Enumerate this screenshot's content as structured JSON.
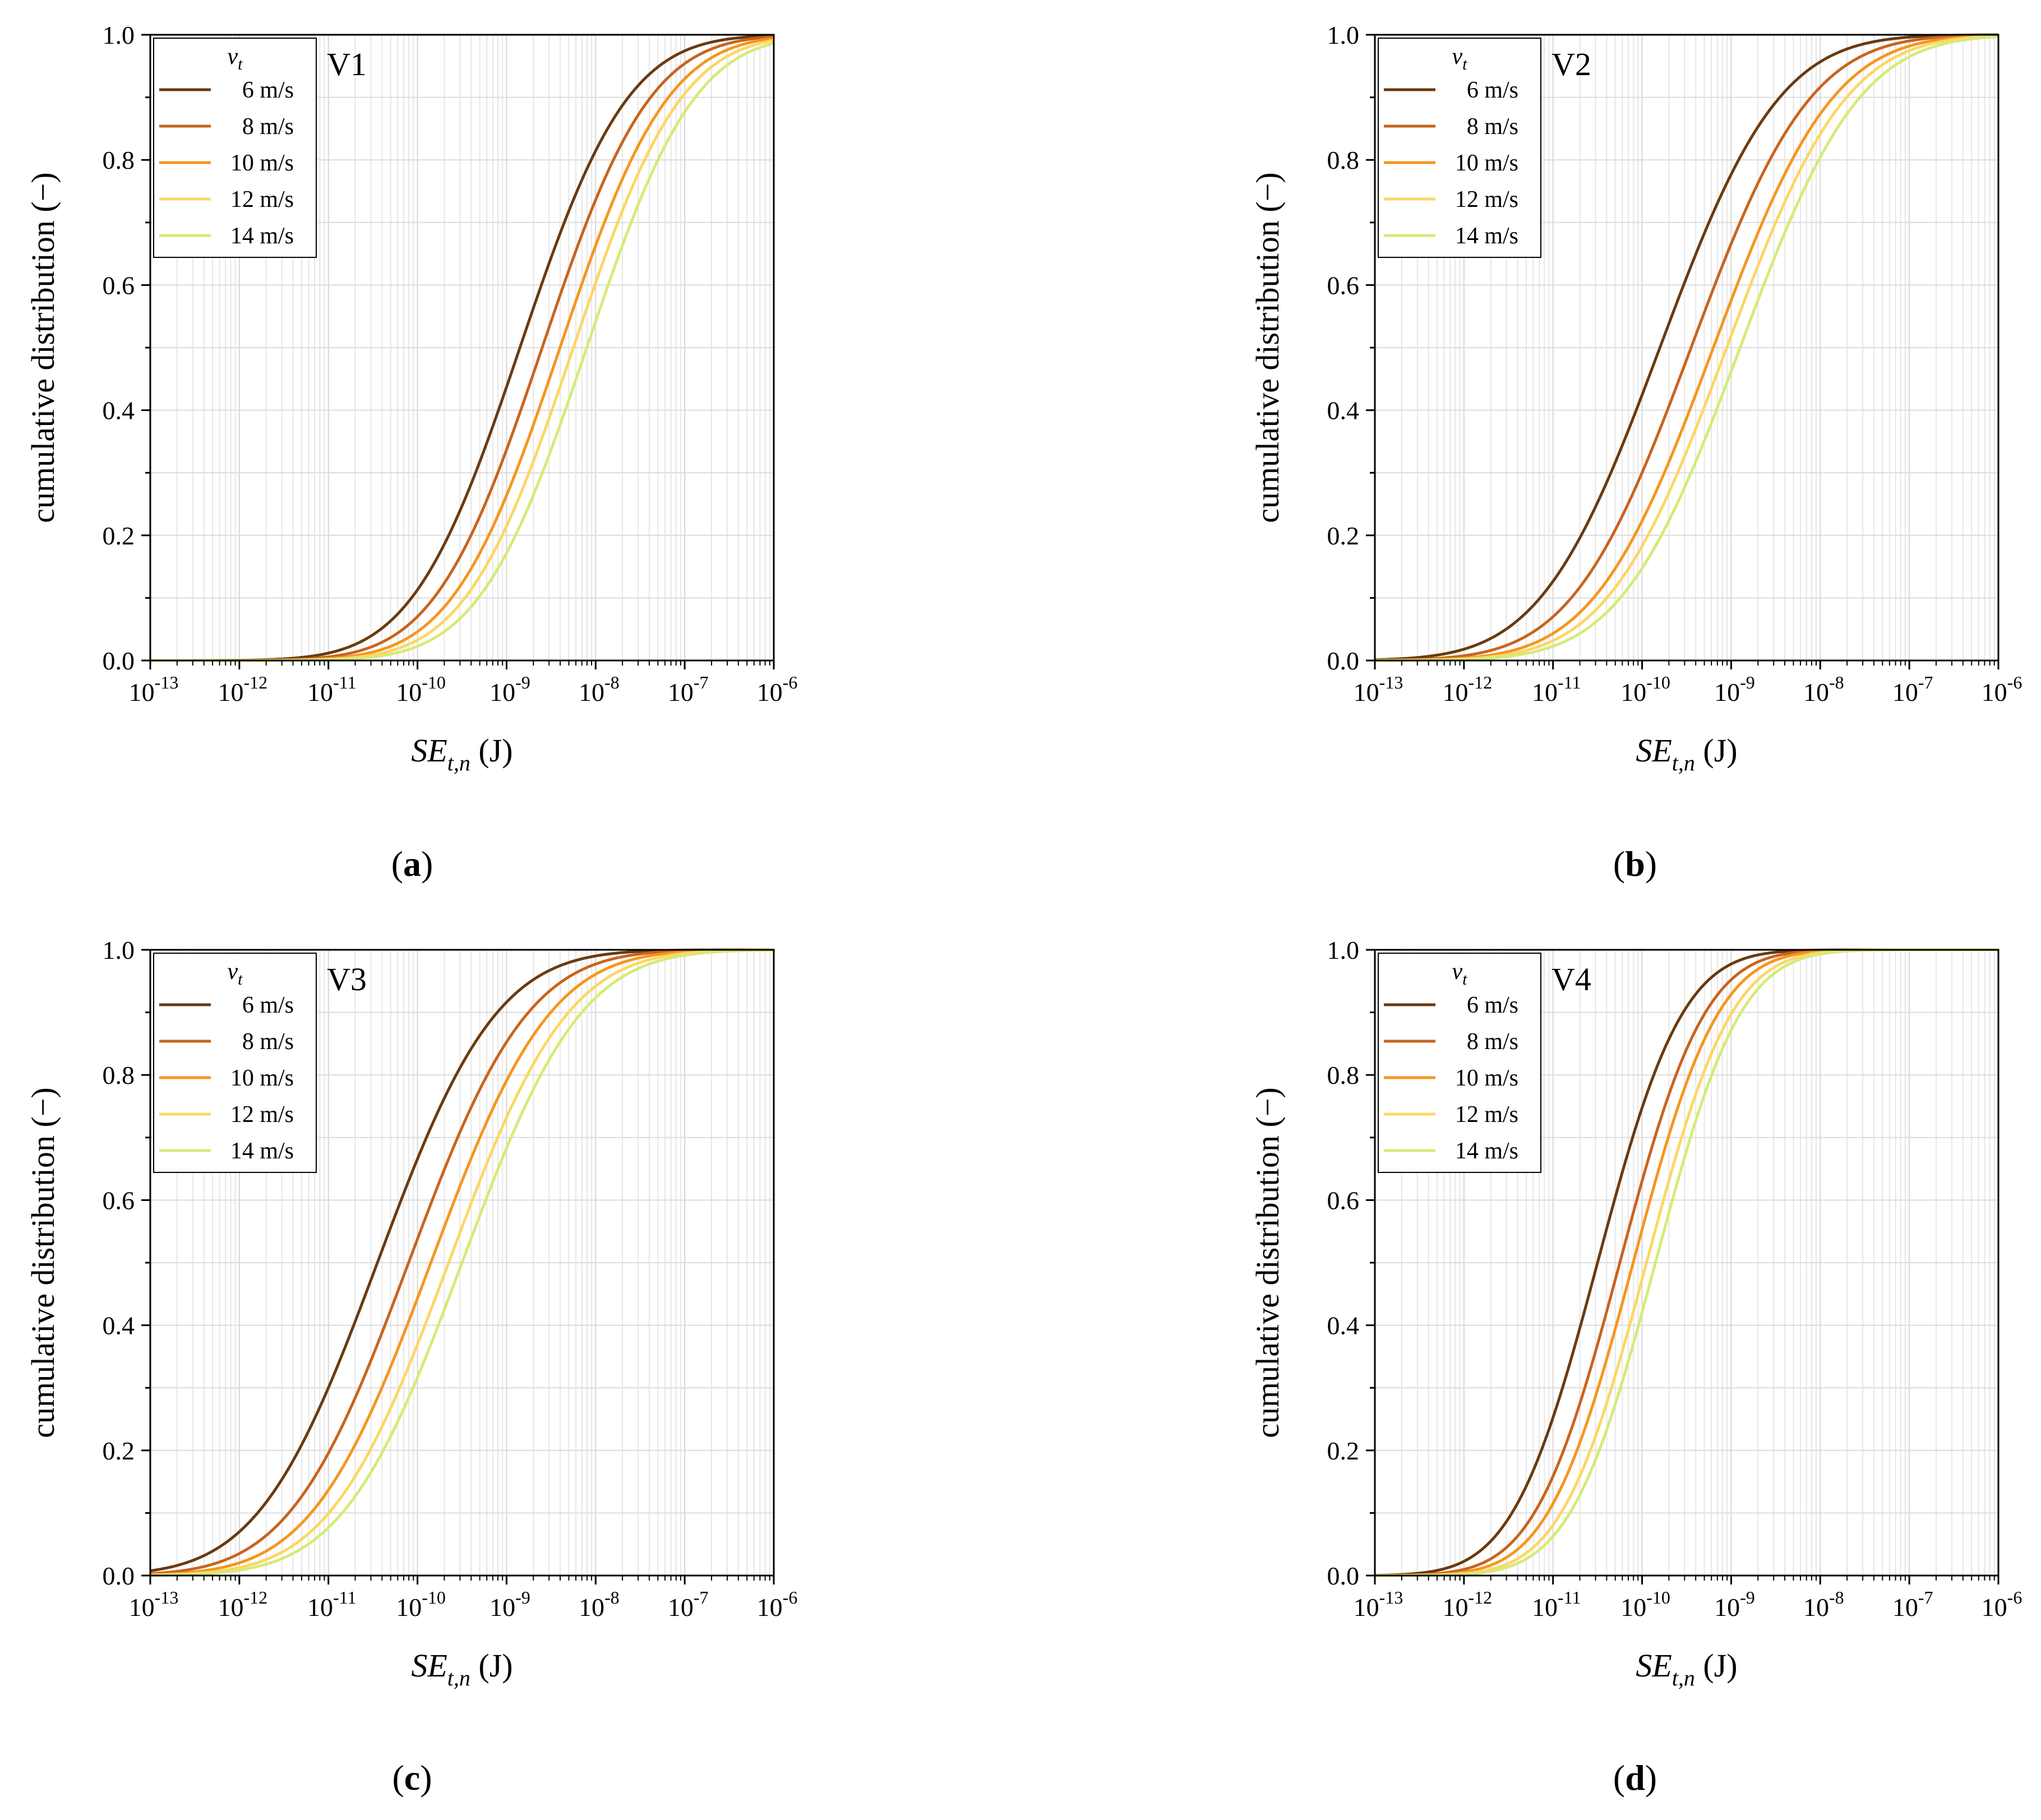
{
  "chart_data": [
    {
      "type": "line",
      "panel_label": "a",
      "title": "V1",
      "xlabel_main": "SE",
      "xlabel_sub": "t,n",
      "xlabel_unit": " (J)",
      "ylabel": "cumulative distribution (−)",
      "xscale": "log",
      "xlim": [
        1e-13,
        1e-06
      ],
      "ylim": [
        0,
        1
      ],
      "x_ticks": [
        "-13",
        "-12",
        "-11",
        "-10",
        "-9",
        "-8",
        "-7",
        "-6"
      ],
      "y_ticks": [
        "0.0",
        "0.2",
        "0.4",
        "0.6",
        "0.8",
        "1.0"
      ],
      "legend_title": "v",
      "legend_title_sub": "t",
      "legend_position": "top-left",
      "series": [
        {
          "name": "6 m/s",
          "color": "#6b3a10",
          "median_exp": -8.85,
          "sigma": 0.95
        },
        {
          "name": "8 m/s",
          "color": "#c8641e",
          "median_exp": -8.6,
          "sigma": 0.95
        },
        {
          "name": "10 m/s",
          "color": "#f5961e",
          "median_exp": -8.4,
          "sigma": 0.95
        },
        {
          "name": "12 m/s",
          "color": "#fcd764",
          "median_exp": -8.25,
          "sigma": 0.95
        },
        {
          "name": "14 m/s",
          "color": "#d7ea78",
          "median_exp": -8.1,
          "sigma": 0.95
        }
      ]
    },
    {
      "type": "line",
      "panel_label": "b",
      "title": "V2",
      "xlabel_main": "SE",
      "xlabel_sub": "t,n",
      "xlabel_unit": " (J)",
      "ylabel": "cumulative distribution (−)",
      "xscale": "log",
      "xlim": [
        1e-13,
        1e-06
      ],
      "ylim": [
        0,
        1
      ],
      "x_ticks": [
        "-13",
        "-12",
        "-11",
        "-10",
        "-9",
        "-8",
        "-7",
        "-6"
      ],
      "y_ticks": [
        "0.0",
        "0.2",
        "0.4",
        "0.6",
        "0.8",
        "1.0"
      ],
      "legend_title": "v",
      "legend_title_sub": "t",
      "legend_position": "top-left",
      "series": [
        {
          "name": "6 m/s",
          "color": "#6b3a10",
          "median_exp": -9.8,
          "sigma": 1.05
        },
        {
          "name": "8 m/s",
          "color": "#c8641e",
          "median_exp": -9.45,
          "sigma": 1.05
        },
        {
          "name": "10 m/s",
          "color": "#f5961e",
          "median_exp": -9.2,
          "sigma": 1.05
        },
        {
          "name": "12 m/s",
          "color": "#fcd764",
          "median_exp": -9.05,
          "sigma": 1.05
        },
        {
          "name": "14 m/s",
          "color": "#d7ea78",
          "median_exp": -8.9,
          "sigma": 1.05
        }
      ]
    },
    {
      "type": "line",
      "panel_label": "c",
      "title": "V3",
      "xlabel_main": "SE",
      "xlabel_sub": "t,n",
      "xlabel_unit": " (J)",
      "ylabel": "cumulative distribution (−)",
      "xscale": "log",
      "xlim": [
        1e-13,
        1e-06
      ],
      "ylim": [
        0,
        1
      ],
      "x_ticks": [
        "-13",
        "-12",
        "-11",
        "-10",
        "-9",
        "-8",
        "-7",
        "-6"
      ],
      "y_ticks": [
        "0.0",
        "0.2",
        "0.4",
        "0.6",
        "0.8",
        "1.0"
      ],
      "legend_title": "v",
      "legend_title_sub": "t",
      "legend_position": "top-left",
      "series": [
        {
          "name": "6 m/s",
          "color": "#6b3a10",
          "median_exp": -10.45,
          "sigma": 1.05
        },
        {
          "name": "8 m/s",
          "color": "#c8641e",
          "median_exp": -10.1,
          "sigma": 1.05
        },
        {
          "name": "10 m/s",
          "color": "#f5961e",
          "median_exp": -9.85,
          "sigma": 1.05
        },
        {
          "name": "12 m/s",
          "color": "#fcd764",
          "median_exp": -9.65,
          "sigma": 1.05
        },
        {
          "name": "14 m/s",
          "color": "#d7ea78",
          "median_exp": -9.5,
          "sigma": 1.05
        }
      ]
    },
    {
      "type": "line",
      "panel_label": "d",
      "title": "V4",
      "xlabel_main": "SE",
      "xlabel_sub": "t,n",
      "xlabel_unit": " (J)",
      "ylabel": "cumulative distribution (−)",
      "xscale": "log",
      "xlim": [
        1e-13,
        1e-06
      ],
      "ylim": [
        0,
        1
      ],
      "x_ticks": [
        "-13",
        "-12",
        "-11",
        "-10",
        "-9",
        "-8",
        "-7",
        "-6"
      ],
      "y_ticks": [
        "0.0",
        "0.2",
        "0.4",
        "0.6",
        "0.8",
        "1.0"
      ],
      "legend_title": "v",
      "legend_title_sub": "t",
      "legend_position": "top-left",
      "series": [
        {
          "name": "6 m/s",
          "color": "#6b3a10",
          "median_exp": -10.5,
          "sigma": 0.75
        },
        {
          "name": "8 m/s",
          "color": "#c8641e",
          "median_exp": -10.25,
          "sigma": 0.75
        },
        {
          "name": "10 m/s",
          "color": "#f5961e",
          "median_exp": -10.1,
          "sigma": 0.75
        },
        {
          "name": "12 m/s",
          "color": "#fcd764",
          "median_exp": -9.95,
          "sigma": 0.75
        },
        {
          "name": "14 m/s",
          "color": "#d7ea78",
          "median_exp": -9.85,
          "sigma": 0.75
        }
      ]
    }
  ]
}
